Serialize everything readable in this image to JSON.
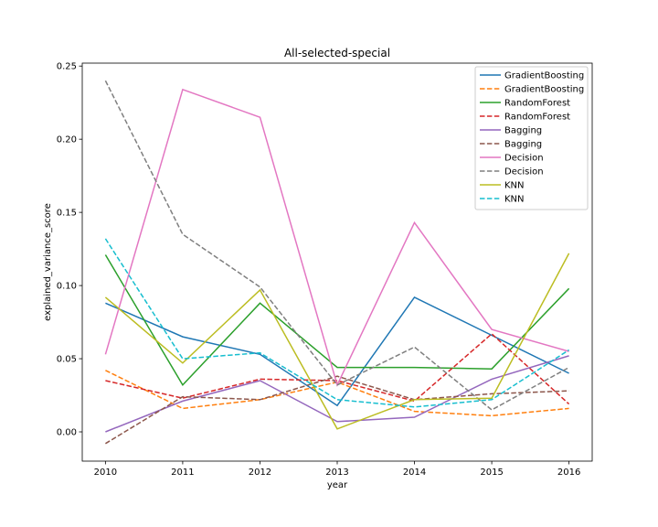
{
  "chart_data": {
    "type": "line",
    "title": "All-selected-special",
    "xlabel": "year",
    "ylabel": "explained_variance_score",
    "x": [
      2010,
      2011,
      2012,
      2013,
      2014,
      2015,
      2016
    ],
    "xlim": [
      2009.7,
      2016.3
    ],
    "ylim": [
      -0.02,
      0.252
    ],
    "yticks": [
      0.0,
      0.05,
      0.1,
      0.15,
      0.2,
      0.25
    ],
    "ytick_labels": [
      "0.00",
      "0.05",
      "0.10",
      "0.15",
      "0.20",
      "0.25"
    ],
    "xtick_labels": [
      "2010",
      "2011",
      "2012",
      "2013",
      "2014",
      "2015",
      "2016"
    ],
    "grid": false,
    "legend_position": "top-right",
    "series": [
      {
        "name": "GradientBoosting",
        "color": "#1f77b4",
        "style": "solid",
        "values": [
          0.088,
          0.065,
          0.053,
          0.018,
          0.092,
          0.066,
          0.04
        ]
      },
      {
        "name": "GradientBoosting",
        "color": "#ff7f0e",
        "style": "dashed",
        "values": [
          0.042,
          0.016,
          0.022,
          0.034,
          0.014,
          0.011,
          0.016
        ]
      },
      {
        "name": "RandomForest",
        "color": "#2ca02c",
        "style": "solid",
        "values": [
          0.121,
          0.032,
          0.088,
          0.044,
          0.044,
          0.043,
          0.098
        ]
      },
      {
        "name": "RandomForest",
        "color": "#d62728",
        "style": "dashed",
        "values": [
          0.035,
          0.023,
          0.036,
          0.035,
          0.021,
          0.067,
          0.019
        ]
      },
      {
        "name": "Bagging",
        "color": "#9467bd",
        "style": "solid",
        "values": [
          0.0,
          0.021,
          0.035,
          0.007,
          0.01,
          0.036,
          0.052
        ]
      },
      {
        "name": "Bagging",
        "color": "#8c564b",
        "style": "dashed",
        "values": [
          -0.008,
          0.024,
          0.022,
          0.038,
          0.022,
          0.026,
          0.028
        ]
      },
      {
        "name": "Decision",
        "color": "#e377c2",
        "style": "solid",
        "values": [
          0.053,
          0.234,
          0.215,
          0.032,
          0.143,
          0.07,
          0.055
        ]
      },
      {
        "name": "Decision",
        "color": "#7f7f7f",
        "style": "dashed",
        "values": [
          0.24,
          0.135,
          0.099,
          0.032,
          0.058,
          0.015,
          0.044
        ]
      },
      {
        "name": "KNN",
        "color": "#bcbd22",
        "style": "solid",
        "values": [
          0.092,
          0.047,
          0.097,
          0.002,
          0.022,
          0.023,
          0.122
        ]
      },
      {
        "name": "KNN",
        "color": "#17becf",
        "style": "dashed",
        "values": [
          0.132,
          0.05,
          0.054,
          0.022,
          0.017,
          0.022,
          0.056
        ]
      }
    ]
  }
}
